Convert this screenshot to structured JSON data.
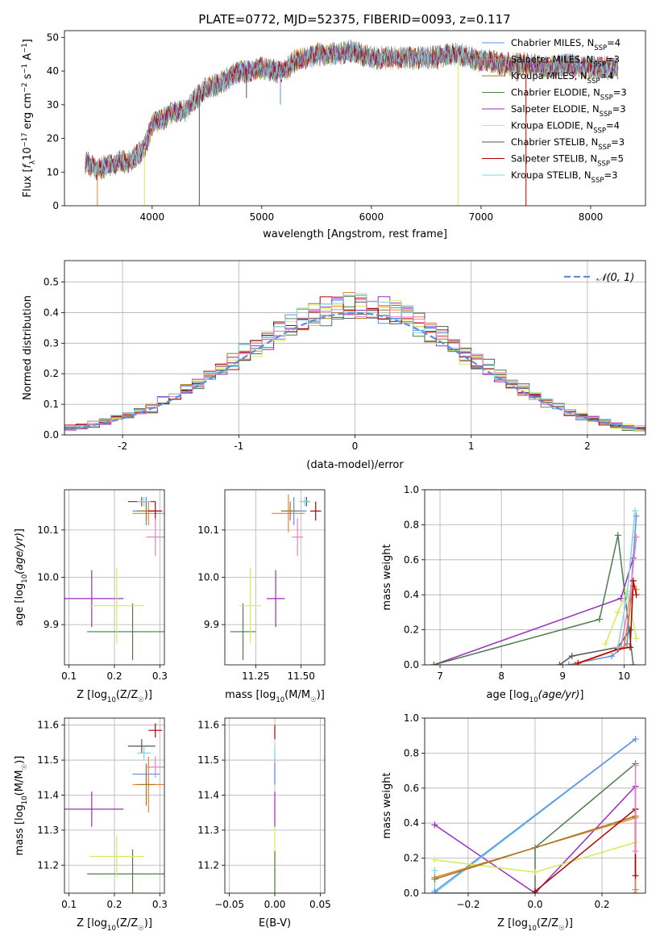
{
  "figure": {
    "title": "PLATE=0772, MJD=52375, FIBERID=0093, z=0.117"
  },
  "colors": {
    "chabrier_miles": "#5b8fe8",
    "salpeter_miles": "#e8822f",
    "kroupa_miles": "#a07a2a",
    "chabrier_elodie": "#4c7c4c",
    "salpeter_elodie": "#9b2fbf",
    "kroupa_elodie": "#d3ec5c",
    "chabrier_stelib": "#555555",
    "salpeter_stelib": "#b00000",
    "kroupa_stelib": "#7fd6e0",
    "pink": "#e87fbf",
    "normal_curve": "#5b8fd8"
  },
  "chart_data": [
    {
      "id": "spectrum",
      "type": "line",
      "title": "PLATE=0772, MJD=52375, FIBERID=0093, z=0.117",
      "xlabel": "wavelength [Angstrom, rest frame]",
      "ylabel": "Flux [f_λ10^-17 erg cm^-2 s^-1 A^-1]",
      "xlim": [
        3200,
        8500
      ],
      "ylim": [
        0,
        52
      ],
      "xticks": [
        4000,
        5000,
        6000,
        7000,
        8000
      ],
      "yticks": [
        0,
        10,
        20,
        30,
        40,
        50
      ],
      "legend_position": "top-right",
      "legend": [
        {
          "label": "Chabrier MILES, N_SSP=4",
          "color": "#5b8fe8"
        },
        {
          "label": "Salpeter MILES, N_SSP=3",
          "color": "#e8822f"
        },
        {
          "label": "Kroupa MILES, N_SSP=4",
          "color": "#a07a2a"
        },
        {
          "label": "Chabrier ELODIE, N_SSP=3",
          "color": "#4c7c4c"
        },
        {
          "label": "Salpeter ELODIE, N_SSP=3",
          "color": "#9b2fbf"
        },
        {
          "label": "Kroupa ELODIE, N_SSP=4",
          "color": "#d3ec5c"
        },
        {
          "label": "Chabrier STELIB, N_SSP=3",
          "color": "#555555"
        },
        {
          "label": "Salpeter STELIB, N_SSP=5",
          "color": "#b00000"
        },
        {
          "label": "Kroupa STELIB, N_SSP=3",
          "color": "#7fd6e0"
        }
      ],
      "continuum": [
        [
          3390,
          13
        ],
        [
          3500,
          11
        ],
        [
          3600,
          12
        ],
        [
          3700,
          13
        ],
        [
          3800,
          13
        ],
        [
          3900,
          16
        ],
        [
          3950,
          19
        ],
        [
          4000,
          24
        ],
        [
          4100,
          26
        ],
        [
          4200,
          28
        ],
        [
          4300,
          28
        ],
        [
          4400,
          32
        ],
        [
          4500,
          35
        ],
        [
          4600,
          36
        ],
        [
          4700,
          38
        ],
        [
          4800,
          40
        ],
        [
          4900,
          40
        ],
        [
          5000,
          41
        ],
        [
          5100,
          40
        ],
        [
          5200,
          40
        ],
        [
          5300,
          43
        ],
        [
          5400,
          44
        ],
        [
          5500,
          45
        ],
        [
          5600,
          45
        ],
        [
          5700,
          45
        ],
        [
          5800,
          46
        ],
        [
          5900,
          45
        ],
        [
          6000,
          44
        ],
        [
          6100,
          44
        ],
        [
          6200,
          44
        ],
        [
          6300,
          44
        ],
        [
          6400,
          44
        ],
        [
          6500,
          44
        ],
        [
          6600,
          44
        ],
        [
          6700,
          45
        ],
        [
          6800,
          45
        ],
        [
          6900,
          44
        ],
        [
          7000,
          43
        ],
        [
          7100,
          43
        ],
        [
          7200,
          42
        ],
        [
          7400,
          42
        ],
        [
          7600,
          41
        ],
        [
          7800,
          42
        ],
        [
          8000,
          41
        ],
        [
          8250,
          41
        ]
      ],
      "dips": [
        [
          3500,
          0,
          "#e8822f"
        ],
        [
          3930,
          0,
          "#d3ec5c"
        ],
        [
          4430,
          0,
          "#555555"
        ],
        [
          6790,
          0,
          "#d3ec5c"
        ],
        [
          7410,
          0,
          "#b00000"
        ],
        [
          5170,
          30,
          "#5b8fe8"
        ],
        [
          3830,
          12,
          "#b00000"
        ],
        [
          4860,
          32,
          "#555555"
        ],
        [
          7200,
          40,
          "#e8822f"
        ],
        [
          7330,
          37,
          "#b00000"
        ]
      ]
    },
    {
      "id": "residuals",
      "type": "step",
      "xlabel": "(data-model)/error",
      "ylabel": "Normed distribution",
      "xlim": [
        -2.5,
        2.5
      ],
      "ylim": [
        0,
        0.57
      ],
      "xticks": [
        -2,
        -1,
        0,
        1,
        2
      ],
      "yticks": [
        0.0,
        0.1,
        0.2,
        0.3,
        0.4,
        0.5
      ],
      "grid": true,
      "legend_position": "top-right",
      "legend": [
        {
          "label": "𝒩(0, 1)",
          "style": "dashed",
          "color": "#5b8fd8"
        }
      ],
      "bin_width": 0.1,
      "histogram_colors": [
        "#5b8fe8",
        "#e8822f",
        "#a07a2a",
        "#4c7c4c",
        "#9b2fbf",
        "#d3ec5c",
        "#555555",
        "#b00000",
        "#7fd6e0",
        "#e87fbf"
      ],
      "normal": {
        "mean": 0,
        "sigma": 1
      }
    },
    {
      "id": "age-vs-Z",
      "type": "scatter",
      "xlabel": "Z [log10(Z/Z☉)]",
      "ylabel": "age [log10(age/yr)]",
      "xlim": [
        0.09,
        0.31
      ],
      "ylim": [
        9.815,
        10.185
      ],
      "xticks": [
        0.1,
        0.2,
        0.3
      ],
      "yticks": [
        9.9,
        10.0,
        10.1
      ],
      "grid": true,
      "points": [
        {
          "color": "#5b8fe8",
          "x": 0.27,
          "xerr": 0.03,
          "y": 10.14,
          "yerr": 0.03
        },
        {
          "color": "#e8822f",
          "x": 0.275,
          "xerr": 0.035,
          "y": 10.135,
          "yerr": 0.025
        },
        {
          "color": "#a07a2a",
          "x": 0.27,
          "xerr": 0.02,
          "y": 10.14,
          "yerr": 0.02
        },
        {
          "color": "#4c7c4c",
          "x": 0.24,
          "xerr": 0.1,
          "y": 9.885,
          "yerr": 0.06
        },
        {
          "color": "#9b2fbf",
          "x": 0.15,
          "xerr": 0.07,
          "y": 9.955,
          "yerr": 0.06
        },
        {
          "color": "#d3ec5c",
          "x": 0.205,
          "xerr": 0.06,
          "y": 9.94,
          "yerr": 0.08
        },
        {
          "color": "#555555",
          "x": 0.26,
          "xerr": 0.03,
          "y": 10.16,
          "yerr": 0.01
        },
        {
          "color": "#b00000",
          "x": 0.29,
          "xerr": 0.015,
          "y": 10.14,
          "yerr": 0.02
        },
        {
          "color": "#7fd6e0",
          "x": 0.265,
          "xerr": 0.015,
          "y": 10.16,
          "yerr": 0.01
        },
        {
          "color": "#e87fbf",
          "x": 0.29,
          "xerr": 0.02,
          "y": 10.085,
          "yerr": 0.04
        }
      ]
    },
    {
      "id": "age-vs-mass",
      "type": "scatter",
      "xlabel": "mass [log10(M/M☉)]",
      "ylabel": "",
      "xlim": [
        11.08,
        11.63
      ],
      "ylim": [
        9.815,
        10.185
      ],
      "xticks": [
        11.25,
        11.5
      ],
      "yticks": [
        9.9,
        10.0,
        10.1
      ],
      "grid": true,
      "points": [
        {
          "color": "#5b8fe8",
          "x": 11.46,
          "xerr": 0.07,
          "y": 10.14,
          "yerr": 0.03
        },
        {
          "color": "#e8822f",
          "x": 11.43,
          "xerr": 0.09,
          "y": 10.135,
          "yerr": 0.04
        },
        {
          "color": "#a07a2a",
          "x": 11.44,
          "xerr": 0.05,
          "y": 10.14,
          "yerr": 0.02
        },
        {
          "color": "#4c7c4c",
          "x": 11.18,
          "xerr": 0.07,
          "y": 9.885,
          "yerr": 0.06
        },
        {
          "color": "#9b2fbf",
          "x": 11.36,
          "xerr": 0.05,
          "y": 9.955,
          "yerr": 0.06
        },
        {
          "color": "#d3ec5c",
          "x": 11.22,
          "xerr": 0.06,
          "y": 9.94,
          "yerr": 0.08
        },
        {
          "color": "#555555",
          "x": 11.53,
          "xerr": 0.02,
          "y": 10.16,
          "yerr": 0.01
        },
        {
          "color": "#b00000",
          "x": 11.58,
          "xerr": 0.03,
          "y": 10.14,
          "yerr": 0.02
        },
        {
          "color": "#7fd6e0",
          "x": 11.52,
          "xerr": 0.03,
          "y": 10.16,
          "yerr": 0.01
        },
        {
          "color": "#e87fbf",
          "x": 11.48,
          "xerr": 0.03,
          "y": 10.085,
          "yerr": 0.04
        }
      ]
    },
    {
      "id": "weight-vs-age",
      "type": "line",
      "xlabel": "age [log10(age/yr)]",
      "ylabel": "mass weight",
      "xlim": [
        6.75,
        10.35
      ],
      "ylim": [
        0,
        1
      ],
      "xticks": [
        7,
        8,
        9,
        10
      ],
      "yticks": [
        0.0,
        0.2,
        0.4,
        0.6,
        0.8,
        1.0
      ],
      "grid": true,
      "series": [
        {
          "color": "#9b2fbf",
          "x": [
            6.9,
            9.95,
            10.15
          ],
          "y": [
            0.0,
            0.38,
            0.61
          ]
        },
        {
          "color": "#4c7c4c",
          "x": [
            6.9,
            9.6,
            9.9,
            10.15
          ],
          "y": [
            0.0,
            0.26,
            0.74,
            0.0
          ]
        },
        {
          "color": "#555555",
          "x": [
            8.95,
            9.15,
            9.9,
            10.1
          ],
          "y": [
            0.0,
            0.05,
            0.1,
            0.2
          ]
        },
        {
          "color": "#5b8fe8",
          "x": [
            9.1,
            9.8,
            10.05,
            10.2
          ],
          "y": [
            0.0,
            0.05,
            0.12,
            0.85
          ]
        },
        {
          "color": "#d3ec5c",
          "x": [
            9.7,
            9.9,
            10.05,
            10.2
          ],
          "y": [
            0.12,
            0.3,
            0.42,
            0.15
          ]
        },
        {
          "color": "#e87fbf",
          "x": [
            9.95,
            10.1,
            10.2
          ],
          "y": [
            0.1,
            0.4,
            0.73
          ]
        },
        {
          "color": "#e8822f",
          "x": [
            9.2,
            10.0,
            10.15,
            10.2
          ],
          "y": [
            0.0,
            0.1,
            0.45,
            0.43
          ]
        },
        {
          "color": "#b00000",
          "x": [
            9.25,
            9.9,
            10.1,
            10.15,
            10.2
          ],
          "y": [
            0.01,
            0.09,
            0.1,
            0.48,
            0.4
          ]
        },
        {
          "color": "#7fd6e0",
          "x": [
            9.9,
            10.05,
            10.18
          ],
          "y": [
            0.1,
            0.4,
            0.88
          ]
        }
      ]
    },
    {
      "id": "mass-vs-Z",
      "type": "scatter",
      "xlabel": "Z [log10(Z/Z☉)]",
      "ylabel": "mass [log10(M/M☉)]",
      "xlim": [
        0.09,
        0.31
      ],
      "ylim": [
        11.12,
        11.62
      ],
      "xticks": [
        0.1,
        0.2,
        0.3
      ],
      "yticks": [
        11.2,
        11.3,
        11.4,
        11.5,
        11.6
      ],
      "grid": true,
      "points": [
        {
          "color": "#5b8fe8",
          "x": 0.27,
          "xerr": 0.03,
          "y": 11.46,
          "yerr": 0.03
        },
        {
          "color": "#e8822f",
          "x": 0.275,
          "xerr": 0.035,
          "y": 11.43,
          "yerr": 0.08
        },
        {
          "color": "#a07a2a",
          "x": 0.27,
          "xerr": 0.02,
          "y": 11.43,
          "yerr": 0.06
        },
        {
          "color": "#4c7c4c",
          "x": 0.24,
          "xerr": 0.1,
          "y": 11.175,
          "yerr": 0.07
        },
        {
          "color": "#9b2fbf",
          "x": 0.15,
          "xerr": 0.07,
          "y": 11.36,
          "yerr": 0.05
        },
        {
          "color": "#d3ec5c",
          "x": 0.205,
          "xerr": 0.06,
          "y": 11.225,
          "yerr": 0.06
        },
        {
          "color": "#555555",
          "x": 0.26,
          "xerr": 0.03,
          "y": 11.54,
          "yerr": 0.02
        },
        {
          "color": "#b00000",
          "x": 0.29,
          "xerr": 0.015,
          "y": 11.585,
          "yerr": 0.02
        },
        {
          "color": "#7fd6e0",
          "x": 0.265,
          "xerr": 0.015,
          "y": 11.52,
          "yerr": 0.02
        },
        {
          "color": "#e87fbf",
          "x": 0.29,
          "xerr": 0.02,
          "y": 11.48,
          "yerr": 0.03
        }
      ]
    },
    {
      "id": "mass-vs-ebv",
      "type": "scatter",
      "xlabel": "E(B-V)",
      "ylabel": "",
      "xlim": [
        -0.055,
        0.055
      ],
      "ylim": [
        11.12,
        11.62
      ],
      "xticks": [
        -0.05,
        0.0,
        0.05
      ],
      "xticklabels": [
        "−0.05",
        "0.00",
        "0.05"
      ],
      "yticks": [
        11.2,
        11.3,
        11.4,
        11.5,
        11.6
      ],
      "grid": true,
      "points": [
        {
          "color": "#d3ec5c",
          "x": 0,
          "y": 11.24,
          "yerr": 0.1
        },
        {
          "color": "#4c7c4c",
          "x": 0,
          "y": 11.18,
          "yerr": 0.06
        },
        {
          "color": "#9b2fbf",
          "x": 0,
          "y": 11.36,
          "yerr": 0.05
        },
        {
          "color": "#e87fbf",
          "x": 0,
          "y": 11.48,
          "yerr": 0.04
        },
        {
          "color": "#5b8fe8",
          "x": 0,
          "y": 11.46,
          "yerr": 0.03
        },
        {
          "color": "#b00000",
          "x": 0,
          "y": 11.58,
          "yerr": 0.02
        },
        {
          "color": "#7fd6e0",
          "x": 0,
          "y": 11.52,
          "yerr": 0.02
        }
      ]
    },
    {
      "id": "weight-vs-Z",
      "type": "line",
      "xlabel": "Z [log10(Z/Z☉)]",
      "ylabel": "mass weight",
      "xlim": [
        -0.33,
        0.33
      ],
      "ylim": [
        0,
        1
      ],
      "xticks": [
        -0.2,
        0.0,
        0.2
      ],
      "xticklabels": [
        "−0.2",
        "0.0",
        "0.2"
      ],
      "yticks": [
        0.0,
        0.2,
        0.4,
        0.6,
        0.8,
        1.0
      ],
      "grid": true,
      "series": [
        {
          "color": "#9b2fbf",
          "x": [
            -0.3,
            0.0,
            0.3,
            0.3
          ],
          "y": [
            0.39,
            0.0,
            0.61,
            0.0
          ]
        },
        {
          "color": "#4c7c4c",
          "x": [
            -0.3,
            0.0,
            0.0,
            0.3
          ],
          "y": [
            0.0,
            0.0,
            0.26,
            0.74
          ]
        },
        {
          "color": "#7fd6e0",
          "x": [
            -0.3,
            -0.3,
            0.3
          ],
          "y": [
            0.13,
            0.0,
            0.88
          ]
        },
        {
          "color": "#5b8fe8",
          "x": [
            -0.3,
            0.3
          ],
          "y": [
            0.01,
            0.88
          ]
        },
        {
          "color": "#d3ec5c",
          "x": [
            -0.3,
            0.0,
            0.3
          ],
          "y": [
            0.19,
            0.12,
            0.29
          ]
        },
        {
          "color": "#e8822f",
          "x": [
            -0.3,
            0.3,
            0.3
          ],
          "y": [
            0.09,
            0.43,
            0.02
          ]
        },
        {
          "color": "#a07a2a",
          "x": [
            -0.3,
            0.3
          ],
          "y": [
            0.08,
            0.44
          ]
        },
        {
          "color": "#b00000",
          "x": [
            0.0,
            0.3,
            0.3
          ],
          "y": [
            0.01,
            0.48,
            0.1
          ]
        },
        {
          "color": "#e87fbf",
          "x": [
            0.3,
            0.3
          ],
          "y": [
            0.73,
            0.24
          ]
        }
      ]
    }
  ]
}
